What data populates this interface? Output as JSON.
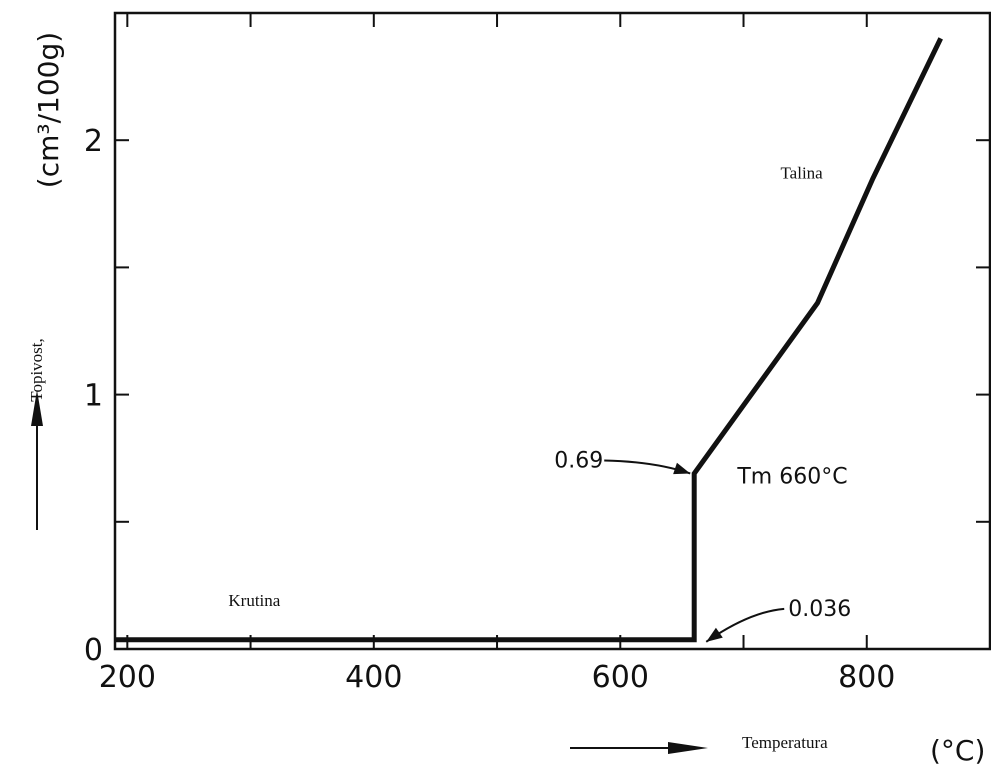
{
  "chart_data": {
    "type": "line",
    "title": "",
    "xlabel": "Temperatura",
    "x_unit": "(°C)",
    "ylabel": "Topivost,",
    "y_unit": "(cm³/100g)",
    "xlim": [
      190,
      900
    ],
    "ylim": [
      0,
      2.5
    ],
    "x_ticks": [
      {
        "value": 200,
        "label": "200"
      },
      {
        "value": 400,
        "label": "400"
      },
      {
        "value": 600,
        "label": "600"
      },
      {
        "value": 800,
        "label": "800"
      }
    ],
    "x_minor_ticks": [
      300,
      500,
      700
    ],
    "y_ticks": [
      {
        "value": 0,
        "label": "0"
      },
      {
        "value": 1,
        "label": "1"
      },
      {
        "value": 2,
        "label": "2"
      }
    ],
    "y_minor_ticks": [
      0.5,
      1.5
    ],
    "grid": false,
    "series": [
      {
        "points": [
          {
            "x": 190,
            "y": 0.036
          },
          {
            "x": 660,
            "y": 0.036
          },
          {
            "x": 660,
            "y": 0.69
          },
          {
            "x": 760,
            "y": 1.36
          },
          {
            "x": 805,
            "y": 1.85
          },
          {
            "x": 860,
            "y": 2.4
          }
        ]
      }
    ],
    "annotations": [
      {
        "text": "0.69",
        "x": 660,
        "y": 0.69
      },
      {
        "text": "0.036",
        "x": 660,
        "y": 0.036
      },
      {
        "text": "Tm 660°C",
        "x": 695,
        "y": 0.65
      }
    ],
    "regions": [
      {
        "text": "Talina",
        "x": 730,
        "y": 1.85
      },
      {
        "text": "Krutina",
        "x": 282,
        "y": 0.17
      }
    ]
  }
}
